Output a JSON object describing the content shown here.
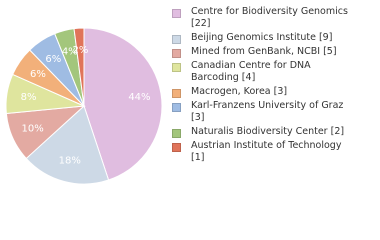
{
  "chart_data": {
    "type": "pie",
    "categories": [
      "Centre for Biodiversity Genomics [22]",
      "Beijing Genomics Institute [9]",
      "Mined from GenBank, NCBI [5]",
      "Canadian Centre for DNA Barcoding [4]",
      "Macrogen, Korea [3]",
      "Karl-Franzens University of Graz [3]",
      "Naturalis Biodiversity Center [2]",
      "Austrian Institute of Technology [1]"
    ],
    "values": [
      44,
      18,
      10,
      8,
      6,
      6,
      4,
      2
    ],
    "value_labels": [
      "44%",
      "18%",
      "10%",
      "8%",
      "6%",
      "6%",
      "4%",
      "2%"
    ],
    "colors": [
      "#e0bde0",
      "#cdd9e6",
      "#e3aaa2",
      "#dfe59e",
      "#f2b07a",
      "#9fbce3",
      "#a3c67c",
      "#e0745a"
    ]
  }
}
